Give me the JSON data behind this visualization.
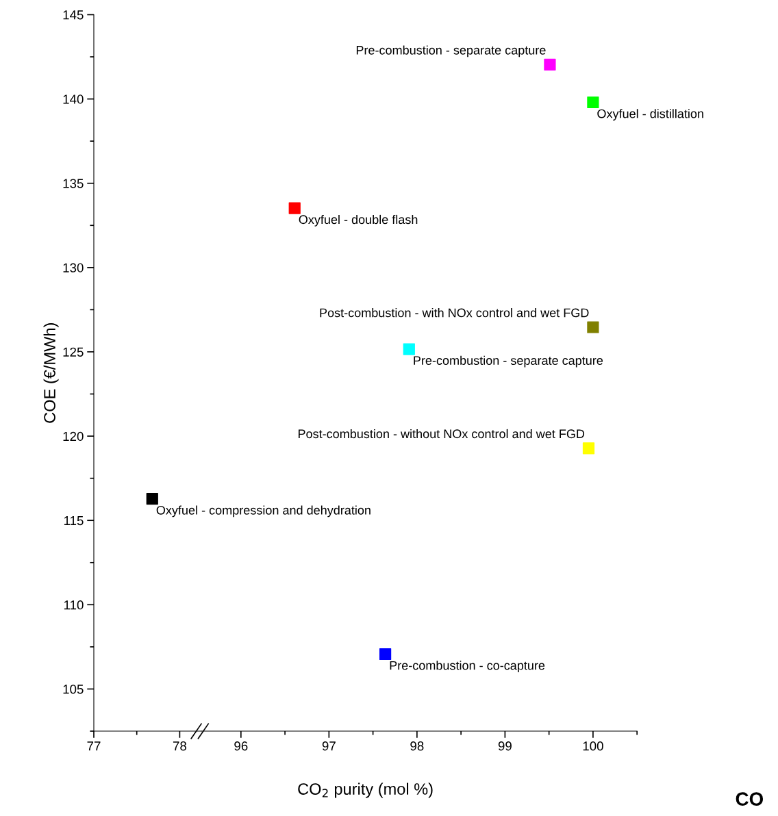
{
  "chart_data": [
    {
      "type": "scatter",
      "ylabel": "COE (€/MWh)",
      "xlim": [
        77,
        78.25
      ],
      "xticks": [
        77,
        78
      ],
      "ylim": [
        102.5,
        145
      ],
      "yticks": [
        105,
        110,
        115,
        120,
        125,
        130,
        135,
        140,
        145
      ],
      "marker": "square",
      "grid": false,
      "legend": false,
      "series": [
        {
          "name": "Oxyfuel - compression and dehydration",
          "color": "#000000",
          "x": [
            77.68
          ],
          "values": [
            116.28
          ]
        }
      ]
    },
    {
      "type": "scatter",
      "xlabel": "CO$_{2}$ purity (mol %)",
      "xlim": [
        95.55,
        100.5
      ],
      "xticks": [
        96,
        97,
        98,
        99,
        100
      ],
      "ylim": [
        102.5,
        145
      ],
      "tick_labels": "x",
      "marker": "square",
      "grid": false,
      "legend": false,
      "annotations": [
        "CO"
      ],
      "series": [
        {
          "name": "Pre-combustion - separate capture",
          "color": "#ff00ff",
          "x": [
            99.51
          ],
          "values": [
            142.04
          ]
        },
        {
          "name": "Oxyfuel - distillation",
          "color": "#00ff00",
          "x": [
            100.0
          ],
          "values": [
            139.8
          ]
        },
        {
          "name": "Oxyfuel - double flash",
          "color": "#ff0000",
          "x": [
            96.61
          ],
          "values": [
            133.52
          ]
        },
        {
          "name": "Post-combustion - with NOx control and wet FGD",
          "color": "#808000",
          "x": [
            100.0
          ],
          "values": [
            126.46
          ]
        },
        {
          "name": "Pre-combustion - separate capture",
          "color": "#00ffff",
          "x": [
            97.91
          ],
          "values": [
            125.16
          ]
        },
        {
          "name": "Post-combustion - without NOx control and wet FGD",
          "color": "#ffff00",
          "x": [
            99.95
          ],
          "values": [
            119.28
          ]
        },
        {
          "name": "Pre-combustion - co-capture",
          "color": "#0000ff",
          "x": [
            97.64
          ],
          "values": [
            107.07
          ]
        }
      ]
    }
  ]
}
